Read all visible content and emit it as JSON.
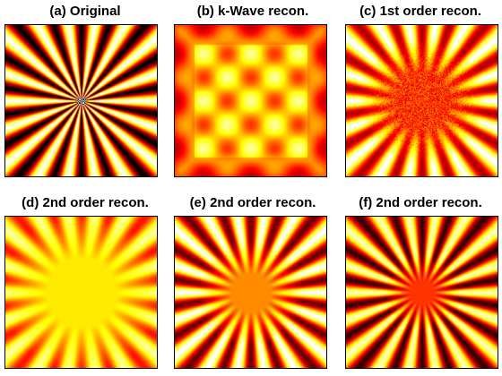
{
  "panels": [
    {
      "title": "(a) Original",
      "kind": "original"
    },
    {
      "title": "(b) k-Wave recon.",
      "kind": "kwave"
    },
    {
      "title": "(c) 1st order recon.",
      "kind": "first"
    },
    {
      "title": "(d) 2nd order recon.",
      "kind": "second_smooth"
    },
    {
      "title": "(e) 2nd order recon.",
      "kind": "second_mid"
    },
    {
      "title": "(f) 2nd order recon.",
      "kind": "second_sharp"
    }
  ],
  "colormap": "hot"
}
